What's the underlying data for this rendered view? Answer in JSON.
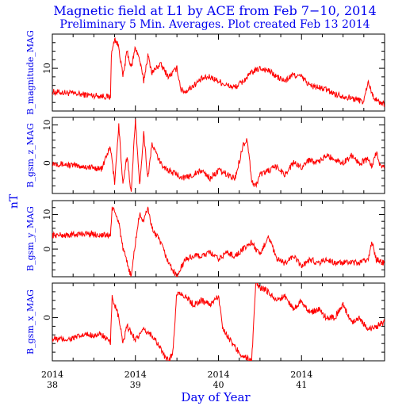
{
  "chart_data": {
    "type": "line",
    "title": "Magnetic field at L1 by ACE from Feb 7−10, 2014",
    "subtitle": "Preliminary 5 Min. Averages. Plot created Feb 13 2014",
    "xlabel": "Day of Year",
    "unit_label": "nT",
    "xlim": [
      38,
      42
    ],
    "x_ticks": [
      {
        "day": 38,
        "year": "2014",
        "doy": "38"
      },
      {
        "day": 39,
        "year": "2014",
        "doy": "39"
      },
      {
        "day": 40,
        "year": "2014",
        "doy": "40"
      },
      {
        "day": 41,
        "year": "2014",
        "doy": "41"
      }
    ],
    "colors": {
      "trace": "#ff0000",
      "text": "#0000ee",
      "axis": "#000000"
    },
    "panels": [
      {
        "name": "B_magnitude_MAG",
        "label": "B_magnitude_MAG",
        "ylim": [
          0,
          18
        ],
        "y_ticks": [
          10
        ],
        "x": [
          38.0,
          38.2,
          38.4,
          38.6,
          38.7,
          38.71,
          38.75,
          38.8,
          38.85,
          38.9,
          38.95,
          39.0,
          39.05,
          39.1,
          39.15,
          39.2,
          39.3,
          39.4,
          39.5,
          39.55,
          39.6,
          39.7,
          39.8,
          39.9,
          40.0,
          40.1,
          40.2,
          40.3,
          40.4,
          40.5,
          40.6,
          40.7,
          40.8,
          40.9,
          41.0,
          41.1,
          41.2,
          41.3,
          41.4,
          41.5,
          41.6,
          41.7,
          41.75,
          41.8,
          41.85,
          41.9,
          41.95,
          42.0
        ],
        "values": [
          4.5,
          4.2,
          3.8,
          3.5,
          3.2,
          13,
          17,
          15,
          8,
          14,
          10,
          15,
          12,
          7,
          13,
          9,
          11,
          8,
          10,
          5,
          4.5,
          6,
          7.5,
          8,
          7,
          6,
          5.5,
          7,
          9,
          10,
          9.5,
          8,
          7,
          8.5,
          8,
          6,
          5.5,
          5,
          4,
          3.5,
          3,
          2.5,
          2.2,
          7,
          4,
          2.5,
          2,
          1.5
        ]
      },
      {
        "name": "B_gsm_z_MAG",
        "label": "B_gsm_z_MAG",
        "ylim": [
          -8,
          12
        ],
        "y_ticks": [
          0,
          10
        ],
        "x": [
          38.0,
          38.2,
          38.4,
          38.6,
          38.65,
          38.7,
          38.75,
          38.8,
          38.85,
          38.9,
          38.95,
          39.0,
          39.05,
          39.1,
          39.15,
          39.2,
          39.3,
          39.4,
          39.5,
          39.6,
          39.7,
          39.8,
          39.9,
          40.0,
          40.1,
          40.2,
          40.3,
          40.35,
          40.4,
          40.45,
          40.5,
          40.6,
          40.7,
          40.8,
          40.9,
          41.0,
          41.1,
          41.2,
          41.3,
          41.4,
          41.5,
          41.6,
          41.7,
          41.8,
          41.85,
          41.9,
          41.95,
          42.0
        ],
        "values": [
          0,
          -0.5,
          -1,
          -1.5,
          2,
          4,
          -5,
          10,
          -6,
          2,
          -8,
          12,
          -6,
          8,
          -4,
          5,
          0,
          -2,
          -3,
          -4,
          -3,
          -2,
          -4,
          -2,
          -3,
          -4,
          5,
          6,
          -5,
          -6,
          -3,
          -2,
          -1,
          -3,
          0,
          -1,
          1,
          0,
          2,
          1,
          0,
          2,
          0,
          1,
          -1,
          3,
          -1,
          -1
        ]
      },
      {
        "name": "B_gsm_y_MAG",
        "label": "B_gsm_y_MAG",
        "ylim": [
          -8,
          14
        ],
        "y_ticks": [
          0,
          10
        ],
        "x": [
          38.0,
          38.2,
          38.4,
          38.6,
          38.7,
          38.72,
          38.8,
          38.85,
          38.9,
          38.95,
          39.0,
          39.05,
          39.1,
          39.15,
          39.2,
          39.3,
          39.4,
          39.5,
          39.6,
          39.7,
          39.8,
          39.9,
          40.0,
          40.1,
          40.2,
          40.3,
          40.4,
          40.5,
          40.6,
          40.7,
          40.8,
          40.9,
          41.0,
          41.1,
          41.2,
          41.3,
          41.4,
          41.5,
          41.6,
          41.7,
          41.8,
          41.85,
          41.9,
          42.0
        ],
        "values": [
          4,
          4,
          4.5,
          4,
          4,
          12,
          8,
          0,
          -4,
          -8,
          2,
          10,
          8,
          12,
          6,
          2,
          -4,
          -8,
          -3,
          -2,
          -2,
          -1,
          -3,
          -1,
          -2,
          0,
          2,
          -2,
          4,
          -3,
          -4,
          -2,
          -5,
          -3,
          -4,
          -3,
          -4,
          -4,
          -4,
          -4,
          -3,
          2,
          -3,
          -4
        ]
      },
      {
        "name": "B_gsm_x_MAG",
        "label": "B_gsm_x_MAG",
        "ylim": [
          -10,
          8
        ],
        "y_ticks": [
          0
        ],
        "x": [
          38.0,
          38.2,
          38.4,
          38.6,
          38.7,
          38.72,
          38.75,
          38.8,
          38.85,
          38.9,
          39.0,
          39.1,
          39.2,
          39.3,
          39.35,
          39.4,
          39.45,
          39.5,
          39.6,
          39.7,
          39.8,
          39.9,
          40.0,
          40.05,
          40.1,
          40.2,
          40.3,
          40.4,
          40.45,
          40.5,
          40.6,
          40.7,
          40.8,
          40.9,
          41.0,
          41.1,
          41.2,
          41.3,
          41.4,
          41.5,
          41.6,
          41.7,
          41.8,
          41.9,
          42.0
        ],
        "values": [
          -5,
          -5,
          -4,
          -4,
          -6,
          5,
          3,
          0,
          -6,
          -2,
          -5,
          -3,
          -4,
          -7,
          -9,
          -10,
          -8,
          6,
          5,
          3,
          4,
          3,
          5,
          -2,
          -4,
          -7,
          -9,
          -10,
          8,
          7,
          6,
          4,
          5,
          2,
          4,
          1,
          2,
          0,
          0,
          3,
          -1,
          0,
          -3,
          -2,
          -1
        ]
      }
    ]
  }
}
